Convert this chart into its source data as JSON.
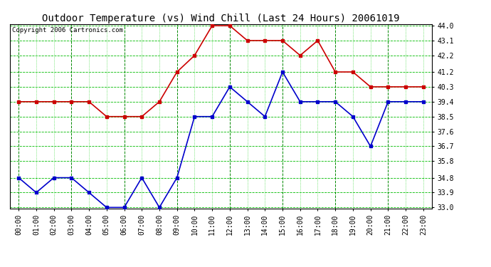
{
  "title": "Outdoor Temperature (vs) Wind Chill (Last 24 Hours) 20061019",
  "copyright": "Copyright 2006 Cartronics.com",
  "hours": [
    "00:00",
    "01:00",
    "02:00",
    "03:00",
    "04:00",
    "05:00",
    "06:00",
    "07:00",
    "08:00",
    "09:00",
    "10:00",
    "11:00",
    "12:00",
    "13:00",
    "14:00",
    "15:00",
    "16:00",
    "17:00",
    "18:00",
    "19:00",
    "20:00",
    "21:00",
    "22:00",
    "23:00"
  ],
  "temp": [
    39.4,
    39.4,
    39.4,
    39.4,
    39.4,
    38.5,
    38.5,
    38.5,
    39.4,
    41.2,
    42.2,
    44.0,
    44.0,
    43.1,
    43.1,
    43.1,
    42.2,
    43.1,
    41.2,
    41.2,
    40.3,
    40.3,
    40.3,
    40.3
  ],
  "windchill": [
    34.8,
    33.9,
    34.8,
    34.8,
    33.9,
    33.0,
    33.0,
    34.8,
    33.0,
    34.8,
    38.5,
    38.5,
    40.3,
    39.4,
    38.5,
    41.2,
    39.4,
    39.4,
    39.4,
    38.5,
    36.7,
    39.4,
    39.4,
    39.4
  ],
  "temp_color": "#cc0000",
  "windchill_color": "#0000cc",
  "bg_color": "#ffffff",
  "plot_bg": "#ffffff",
  "grid_h_color": "#00bb00",
  "grid_v_minor_color": "#00cc00",
  "grid_v_major_color": "#008800",
  "ylim_min": 32.95,
  "ylim_max": 44.1,
  "yticks": [
    33.0,
    33.9,
    34.8,
    35.8,
    36.7,
    37.6,
    38.5,
    39.4,
    40.3,
    41.2,
    42.2,
    43.1,
    44.0
  ],
  "ytick_labels": [
    "33.0",
    "33.9",
    "34.8",
    "35.8",
    "36.7",
    "37.6",
    "38.5",
    "39.4",
    "40.3",
    "41.2",
    "42.2",
    "43.1",
    "44.0"
  ],
  "title_fontsize": 10,
  "tick_fontsize": 7,
  "copyright_fontsize": 6.5,
  "marker": "s",
  "marker_size": 2.5,
  "linewidth": 1.2
}
